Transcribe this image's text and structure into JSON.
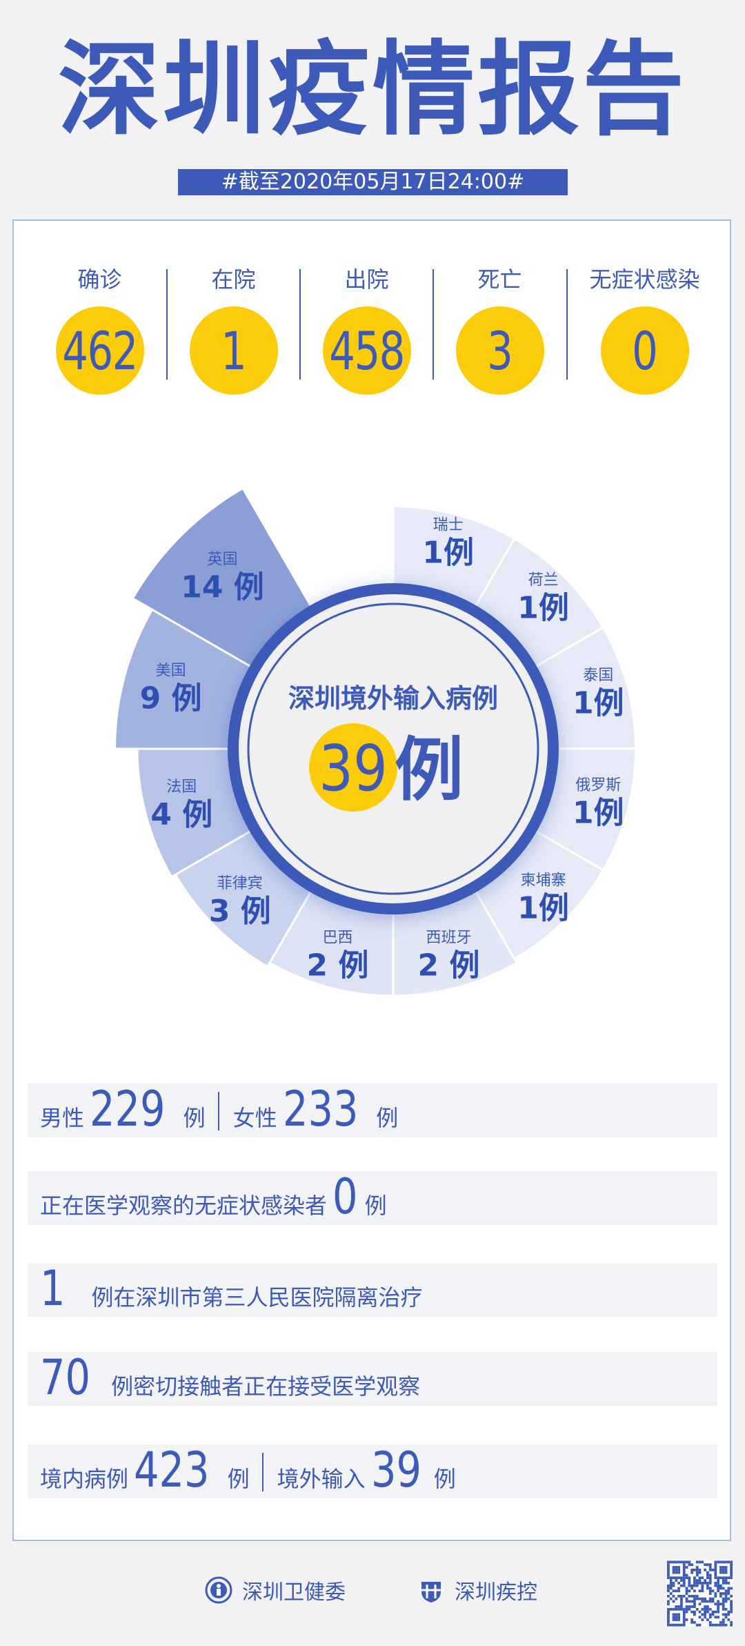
{
  "title": "深圳疫情报告",
  "date_banner": "#截至2020年05月17日24:00#",
  "stats": [
    {
      "label": "确诊",
      "value": "462"
    },
    {
      "label": "在院",
      "value": "1"
    },
    {
      "label": "出院",
      "value": "458"
    },
    {
      "label": "死亡",
      "value": "3"
    },
    {
      "label": "无症状感染",
      "value": "0"
    }
  ],
  "center": {
    "title": "深圳境外输入病例",
    "total": "39",
    "unit": "例"
  },
  "chart_data": {
    "type": "pie",
    "variant": "rose",
    "title": "深圳境外输入病例",
    "total": 39,
    "unit": "例",
    "categories": [
      "瑞士",
      "荷兰",
      "泰国",
      "俄罗斯",
      "柬埔寨",
      "西班牙",
      "巴西",
      "菲律宾",
      "法国",
      "美国",
      "英国"
    ],
    "values": [
      1,
      1,
      1,
      1,
      1,
      2,
      2,
      3,
      4,
      9,
      14
    ],
    "colors": [
      "#e6eaf6",
      "#e6eaf6",
      "#e6eaf6",
      "#e6eaf6",
      "#e6eaf6",
      "#e2e7f5",
      "#dde3f4",
      "#c9d3ee",
      "#b7c4e8",
      "#a3b3e0",
      "#8b9fd6"
    ]
  },
  "rows": {
    "gender": {
      "male_label": "男性",
      "male": "229",
      "female_label": "女性",
      "female": "233",
      "unit": "例"
    },
    "asymptomatic": {
      "text": "正在医学观察的无症状感染者",
      "value": "0",
      "unit": "例"
    },
    "isolation": {
      "value": "1",
      "text": "例在深圳市第三人民医院隔离治疗"
    },
    "contacts": {
      "value": "70",
      "text": "例密切接触者正在接受医学观察"
    },
    "origin": {
      "local_label": "境内病例",
      "local": "423",
      "imported_label": "境外输入",
      "imported": "39",
      "unit": "例"
    }
  },
  "footer": {
    "org1": "深圳卫健委",
    "org2": "深圳疾控"
  },
  "colors": {
    "primary": "#3d5ab8",
    "accent": "#fccb0a",
    "background": "#f2f2f4"
  }
}
